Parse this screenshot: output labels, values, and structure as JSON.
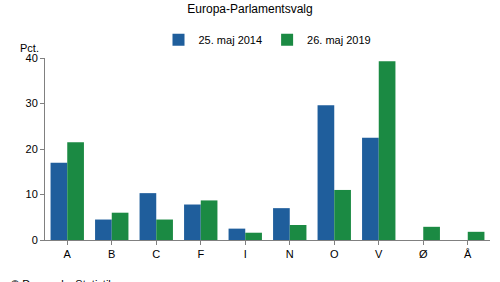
{
  "chart_data": {
    "type": "bar",
    "title": "Europa-Parlamentsvalg",
    "ylabel": "Pct.",
    "annotations": [
      "© Danmarks Statistik"
    ],
    "categories": [
      "A",
      "B",
      "C",
      "F",
      "I",
      "N",
      "O",
      "V",
      "Ø",
      "Å"
    ],
    "series": [
      {
        "name": "25. maj 2014",
        "color": "#1f5e9c",
        "values": [
          17.0,
          4.5,
          10.3,
          7.8,
          2.5,
          7.0,
          29.6,
          22.5,
          null,
          null
        ]
      },
      {
        "name": "26. maj 2019",
        "color": "#1b8a43",
        "values": [
          21.5,
          6.0,
          4.5,
          8.7,
          1.6,
          3.3,
          11.0,
          39.3,
          2.9,
          1.8
        ]
      }
    ],
    "ylim": [
      0,
      40
    ],
    "yticks": [
      0,
      10,
      20,
      30,
      40
    ],
    "grid": false,
    "legend": "top"
  }
}
